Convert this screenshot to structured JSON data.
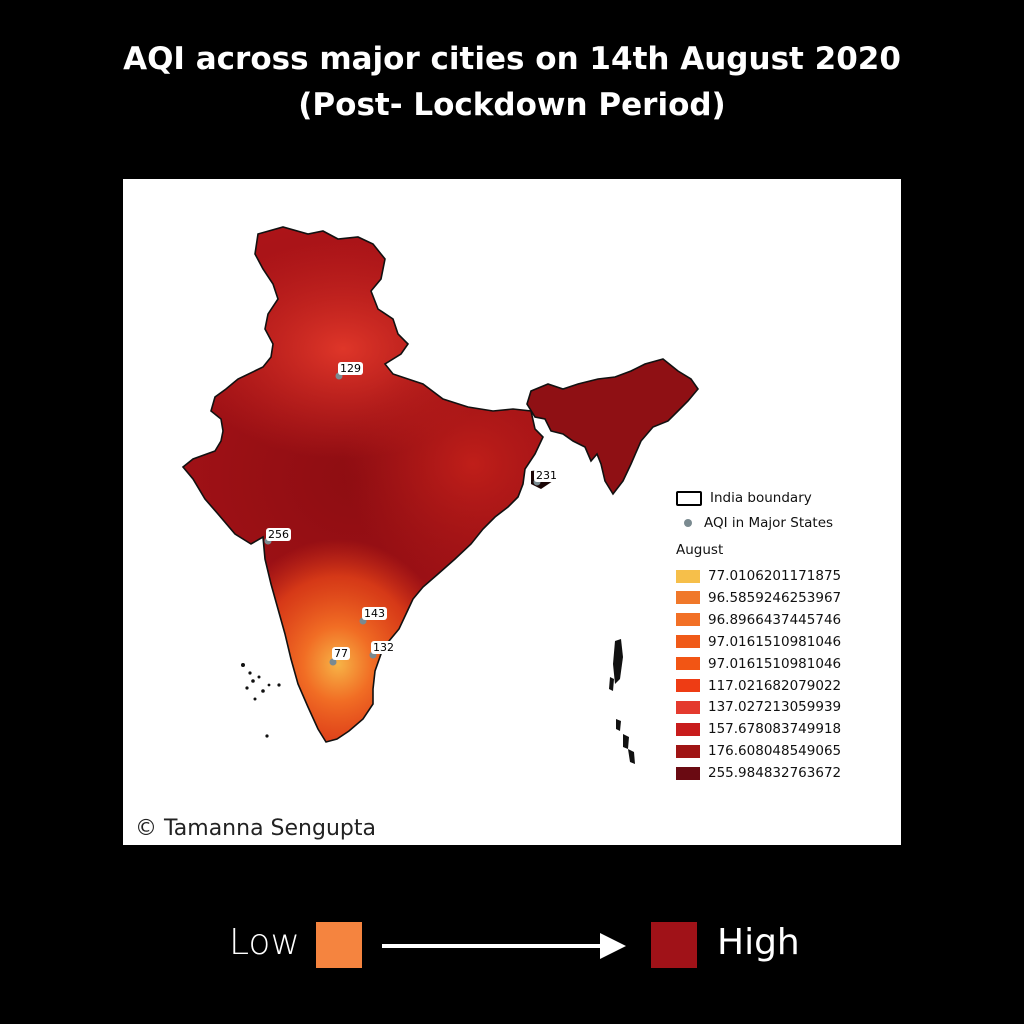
{
  "title": {
    "line1": "AQI across major cities on 14th August 2020",
    "line2": "(Post- Lockdown Period)"
  },
  "credit": "© Tamanna Sengupta",
  "map": {
    "region": "India",
    "cities": [
      {
        "aqi": "129",
        "color": "#7a8a90"
      },
      {
        "aqi": "231",
        "color": "#7a8a90"
      },
      {
        "aqi": "256",
        "color": "#7a8a90"
      },
      {
        "aqi": "143",
        "color": "#7a8a90"
      },
      {
        "aqi": "132",
        "color": "#7a8a90"
      },
      {
        "aqi": "77",
        "color": "#7a8a90"
      }
    ]
  },
  "legend": {
    "boundary_label": "India boundary",
    "points_label": "AQI in Major States",
    "title": "August",
    "classes": [
      {
        "label": "77.0106201171875",
        "color": "#f6bf4a"
      },
      {
        "label": "96.5859246253967",
        "color": "#f0782a"
      },
      {
        "label": "96.8966437445746",
        "color": "#f27026"
      },
      {
        "label": "97.0161510981046",
        "color": "#f05a18"
      },
      {
        "label": "97.0161510981046",
        "color": "#f25514"
      },
      {
        "label": "117.021682079022",
        "color": "#ee3c14"
      },
      {
        "label": "137.027213059939",
        "color": "#e43a2e"
      },
      {
        "label": "157.678083749918",
        "color": "#c81c1c"
      },
      {
        "label": "176.608048549065",
        "color": "#a01414"
      },
      {
        "label": "255.984832763672",
        "color": "#6a0a12"
      }
    ]
  },
  "scale": {
    "low_label": "Low",
    "high_label": "High",
    "low_color": "#f5843f",
    "high_color": "#a01218"
  }
}
